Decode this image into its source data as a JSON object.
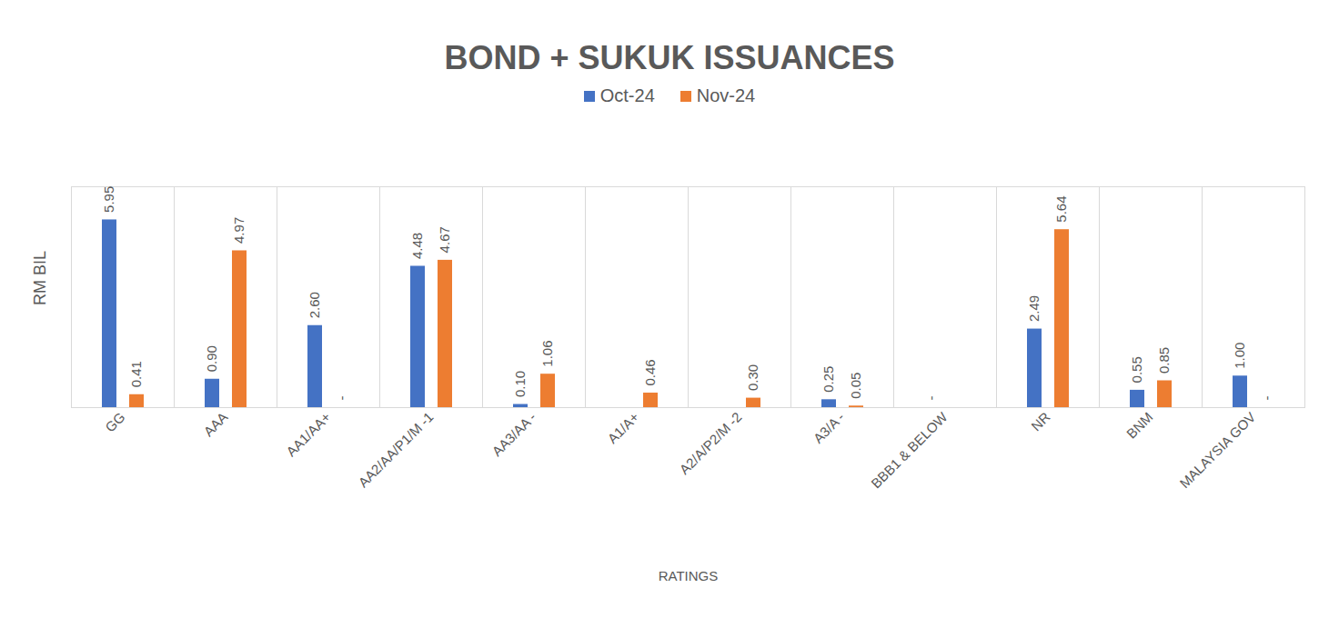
{
  "chart_data": {
    "type": "bar",
    "title": "BOND + SUKUK ISSUANCES",
    "x_label": "RATINGS",
    "y_label": "RM BIL",
    "categories": [
      "GG",
      "AAA",
      "AA1/AA+",
      "AA2/AA/P1/M -1",
      "AA3/AA -",
      "A1/A+",
      "A2/A/P2/M -2",
      "A3/A -",
      "BBB1 & BELOW",
      "NR",
      "BNM",
      "MALAYSIA GOV"
    ],
    "series": [
      {
        "name": "Oct-24",
        "color": "#4472c4",
        "values": [
          5.95,
          0.9,
          2.6,
          4.48,
          0.1,
          null,
          null,
          0.25,
          0,
          2.49,
          0.55,
          1.0
        ],
        "value_labels": [
          "5.95",
          "0.90",
          "2.60",
          "4.48",
          "0.10",
          null,
          null,
          "0.25",
          "-",
          "2.49",
          "0.55",
          "1.00"
        ]
      },
      {
        "name": "Nov-24",
        "color": "#ed7d31",
        "values": [
          0.41,
          4.97,
          0,
          4.67,
          1.06,
          0.46,
          0.3,
          0.05,
          null,
          5.64,
          0.85,
          0
        ],
        "value_labels": [
          "0.41",
          "4.97",
          "-",
          "4.67",
          "1.06",
          "0.46",
          "0.30",
          "0.05",
          null,
          "5.64",
          "0.85",
          "-"
        ]
      }
    ],
    "ylim": [
      0,
      7
    ],
    "grid": false,
    "data_labels": true,
    "tick_labels": "x",
    "legend": "top"
  }
}
